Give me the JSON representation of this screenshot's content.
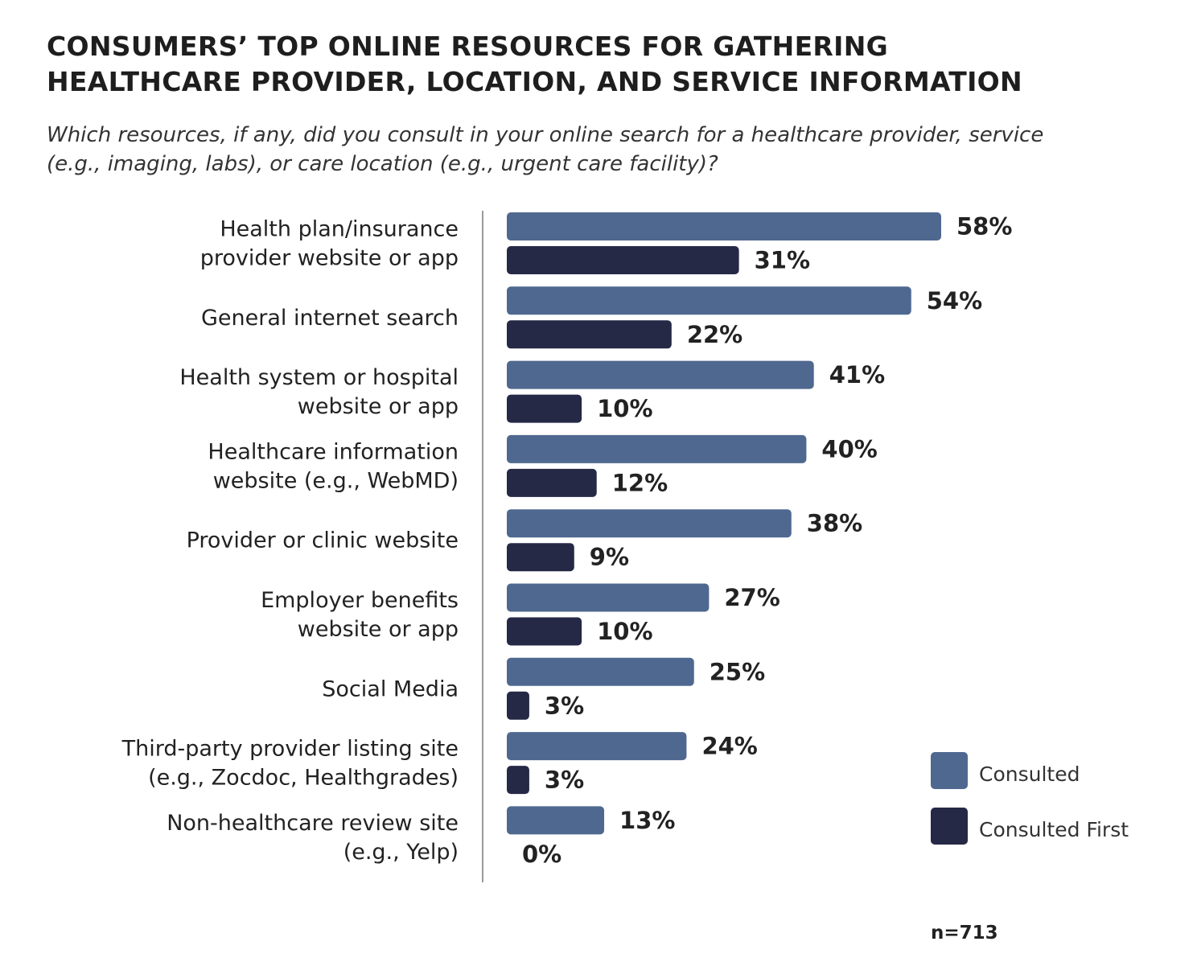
{
  "chart_data": {
    "type": "bar",
    "orientation": "horizontal",
    "title_lines": [
      "CONSUMERS’ TOP ONLINE RESOURCES FOR GATHERING",
      "HEALTHCARE PROVIDER, LOCATION, AND SERVICE INFORMATION"
    ],
    "subtitle_lines": [
      "Which resources, if any, did you consult in your online search for a healthcare provider, service",
      "(e.g., imaging, labs), or care location (e.g., urgent care facility)?"
    ],
    "categories": [
      [
        "Health plan/insurance",
        "provider website or app"
      ],
      [
        "General internet search"
      ],
      [
        "Health system or hospital",
        "website or app"
      ],
      [
        "Healthcare information",
        "website (e.g., WebMD)"
      ],
      [
        "Provider or clinic website"
      ],
      [
        "Employer benefits",
        "website or app"
      ],
      [
        "Social Media"
      ],
      [
        "Third-party provider listing site",
        "(e.g., Zocdoc, Healthgrades)"
      ],
      [
        "Non-healthcare review site",
        "(e.g., Yelp)"
      ]
    ],
    "series": [
      {
        "name": "Consulted",
        "color": "#4f6890",
        "values": [
          58,
          54,
          41,
          40,
          38,
          27,
          25,
          24,
          13
        ]
      },
      {
        "name": "Consulted First",
        "color": "#252946",
        "values": [
          31,
          22,
          10,
          12,
          9,
          10,
          3,
          3,
          0
        ]
      }
    ],
    "value_suffix": "%",
    "xlim": [
      0,
      100
    ],
    "grid": false,
    "legend_placement": "bottom-right",
    "note": "n=713"
  }
}
